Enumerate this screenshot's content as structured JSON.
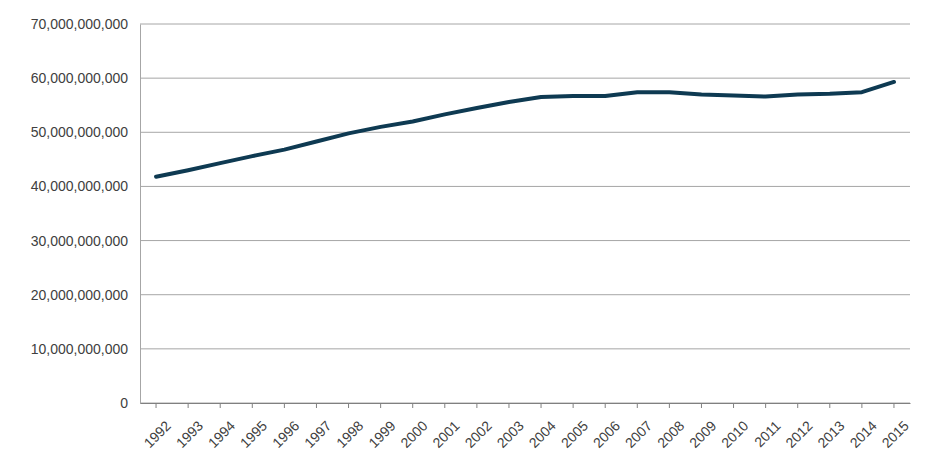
{
  "chart_data": {
    "type": "line",
    "categories": [
      "1992",
      "1993",
      "1994",
      "1995",
      "1996",
      "1997",
      "1998",
      "1999",
      "2000",
      "2001",
      "2002",
      "2003",
      "2004",
      "2005",
      "2006",
      "2007",
      "2008",
      "2009",
      "2010",
      "2011",
      "2012",
      "2013",
      "2014",
      "2015"
    ],
    "values": [
      41800000000,
      43000000000,
      44300000000,
      45600000000,
      46800000000,
      48300000000,
      49800000000,
      51000000000,
      52000000000,
      53300000000,
      54500000000,
      55600000000,
      56500000000,
      56700000000,
      56700000000,
      57400000000,
      57400000000,
      57000000000,
      56800000000,
      56600000000,
      57000000000,
      57100000000,
      57400000000,
      59300000000
    ],
    "color": "#0e3a52",
    "ylim": [
      0,
      70000000000
    ],
    "yticks": [
      0,
      {
        "value": 10000000000,
        "label": "10,000,000,000"
      },
      {
        "value": 20000000000,
        "label": "20,000,000,000"
      },
      {
        "value": 30000000000,
        "label": "30,000,000,000"
      },
      {
        "value": 40000000000,
        "label": "40,000,000,000"
      },
      {
        "value": 50000000000,
        "label": "50,000,000,000"
      },
      {
        "value": 60000000000,
        "label": "60,000,000,000"
      },
      {
        "value": 70000000000,
        "label": "70,000,000,000"
      }
    ],
    "grid": true
  }
}
